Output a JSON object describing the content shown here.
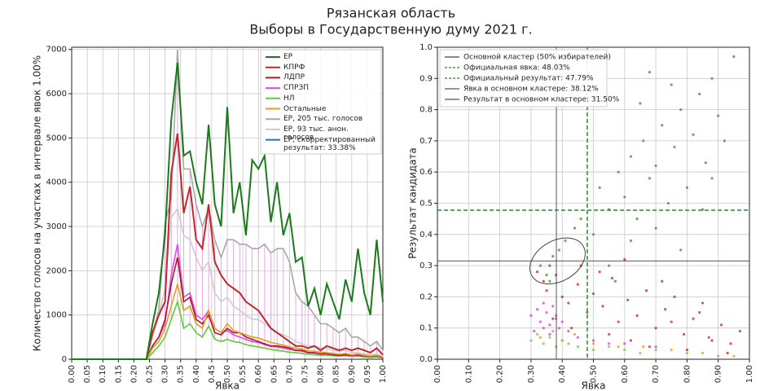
{
  "title": "Рязанская область",
  "subtitle": "Выборы в Государственную думу 2021 г.",
  "chart_data": [
    {
      "type": "line",
      "xlabel": "Явка",
      "ylabel": "Количество голосов на участках в интервале явок 1.00%",
      "xlim": [
        0,
        1
      ],
      "ylim": [
        0,
        7050
      ],
      "xticks": [
        {
          "value": 0,
          "label": "0.00"
        },
        {
          "value": 0.05,
          "label": "0.05"
        },
        {
          "value": 0.1,
          "label": "0.10"
        },
        {
          "value": 0.15,
          "label": "0.15"
        },
        {
          "value": 0.2,
          "label": "0.20"
        },
        {
          "value": 0.25,
          "label": "0.25"
        },
        {
          "value": 0.3,
          "label": "0.30"
        },
        {
          "value": 0.35,
          "label": "0.35"
        },
        {
          "value": 0.4,
          "label": "0.40"
        },
        {
          "value": 0.45,
          "label": "0.45"
        },
        {
          "value": 0.5,
          "label": "0.50"
        },
        {
          "value": 0.55,
          "label": "0.55"
        },
        {
          "value": 0.6,
          "label": "0.60"
        },
        {
          "value": 0.65,
          "label": "0.65"
        },
        {
          "value": 0.7,
          "label": "0.70"
        },
        {
          "value": 0.75,
          "label": "0.75"
        },
        {
          "value": 0.8,
          "label": "0.80"
        },
        {
          "value": 0.85,
          "label": "0.85"
        },
        {
          "value": 0.9,
          "label": "0.90"
        },
        {
          "value": 0.95,
          "label": "0.95"
        },
        {
          "value": 1,
          "label": "1.00"
        }
      ],
      "yticks": [
        0,
        1000,
        2000,
        3000,
        4000,
        5000,
        6000,
        7000
      ],
      "grid": true,
      "legend": "upper right",
      "x": [
        0,
        0.24,
        0.26,
        0.28,
        0.3,
        0.32,
        0.34,
        0.36,
        0.38,
        0.4,
        0.42,
        0.44,
        0.46,
        0.48,
        0.5,
        0.52,
        0.54,
        0.56,
        0.58,
        0.6,
        0.62,
        0.64,
        0.66,
        0.68,
        0.7,
        0.72,
        0.74,
        0.76,
        0.78,
        0.8,
        0.82,
        0.84,
        0.86,
        0.88,
        0.9,
        0.92,
        0.94,
        0.96,
        0.98,
        1.0
      ],
      "series": [
        {
          "name": "ЕР",
          "color": "#1b7a1b",
          "values": [
            0,
            0,
            800,
            1500,
            2800,
            5400,
            6700,
            4600,
            4700,
            4000,
            3500,
            5300,
            3500,
            3000,
            5700,
            3300,
            4000,
            2800,
            4500,
            4300,
            4600,
            3100,
            4000,
            2800,
            3300,
            2200,
            2300,
            1200,
            1600,
            1000,
            1700,
            1300,
            900,
            1800,
            1300,
            2500,
            1500,
            1000,
            2700,
            1300
          ]
        },
        {
          "name": "КПРФ",
          "color": "#c0282d",
          "values": [
            0,
            0,
            600,
            1000,
            1300,
            4200,
            5100,
            3300,
            3900,
            2700,
            2500,
            3500,
            2200,
            1900,
            1700,
            1600,
            1500,
            1300,
            1200,
            1100,
            900,
            700,
            600,
            500,
            400,
            300,
            300,
            250,
            300,
            200,
            300,
            250,
            200,
            250,
            200,
            250,
            200,
            150,
            250,
            100
          ]
        },
        {
          "name": "ЛДПР",
          "color": "#b0152f",
          "values": [
            0,
            0,
            300,
            500,
            900,
            1700,
            2300,
            1300,
            1400,
            900,
            800,
            1000,
            600,
            550,
            700,
            600,
            600,
            500,
            450,
            400,
            350,
            300,
            300,
            280,
            250,
            200,
            200,
            150,
            150,
            120,
            130,
            100,
            90,
            100,
            90,
            100,
            80,
            60,
            80,
            40
          ]
        },
        {
          "name": "СПРЗП",
          "color": "#e04ce0",
          "values": [
            0,
            0,
            300,
            500,
            800,
            1900,
            2600,
            1400,
            1500,
            1000,
            900,
            1100,
            700,
            600,
            650,
            550,
            500,
            450,
            400,
            380,
            330,
            290,
            280,
            250,
            220,
            200,
            180,
            150,
            140,
            120,
            110,
            100,
            90,
            100,
            80,
            90,
            70,
            60,
            70,
            40
          ]
        },
        {
          "name": "НЛ",
          "color": "#5dcc3b",
          "values": [
            0,
            0,
            150,
            300,
            500,
            900,
            1300,
            700,
            800,
            600,
            500,
            750,
            450,
            400,
            450,
            400,
            380,
            330,
            300,
            280,
            250,
            220,
            200,
            180,
            160,
            150,
            130,
            110,
            100,
            90,
            90,
            80,
            70,
            80,
            60,
            70,
            50,
            40,
            50,
            30
          ]
        },
        {
          "name": "Остальные",
          "color": "#e0a020",
          "values": [
            0,
            0,
            250,
            400,
            700,
            1200,
            1700,
            1100,
            1200,
            800,
            700,
            1100,
            700,
            600,
            800,
            650,
            600,
            550,
            500,
            480,
            430,
            380,
            350,
            320,
            280,
            250,
            230,
            190,
            180,
            160,
            150,
            130,
            110,
            130,
            100,
            120,
            90,
            70,
            90,
            50
          ]
        },
        {
          "name": "ЕР, 205 тыс. голосов",
          "color": "#a8a8a8",
          "values": [
            0,
            0,
            600,
            1100,
            3100,
            3600,
            7000,
            4300,
            4300,
            3500,
            3000,
            3400,
            2700,
            2300,
            2700,
            2700,
            2600,
            2600,
            2500,
            2500,
            2600,
            2400,
            2500,
            2500,
            2200,
            1500,
            1300,
            1200,
            1000,
            800,
            800,
            700,
            600,
            700,
            500,
            500,
            400,
            300,
            400,
            200
          ]
        },
        {
          "name": "ЕР, 93 тыс. анон. голосов",
          "color": "#cccccc",
          "values": [
            0,
            0,
            500,
            1000,
            1600,
            3200,
            3400,
            2800,
            2700,
            2300,
            2000,
            2200,
            1500,
            1300,
            1400,
            1200,
            1100,
            1000,
            900,
            900,
            800,
            700,
            600,
            550,
            500,
            400,
            350,
            300,
            300,
            250,
            250,
            200,
            180,
            200,
            150,
            150,
            120,
            100,
            120,
            60
          ]
        },
        {
          "name": "ЕР, скорректированный результат: 33.38%",
          "color": "#1f77b4",
          "values": [
            null,
            null,
            null,
            null,
            null,
            null,
            null,
            null,
            null,
            null,
            null,
            null,
            null,
            null,
            null,
            null,
            null,
            null,
            null,
            null,
            null,
            null,
            null,
            null,
            null,
            null,
            null,
            null,
            null,
            null,
            null,
            null,
            null,
            null,
            null,
            null,
            null,
            null,
            null,
            null
          ]
        }
      ]
    },
    {
      "type": "scatter",
      "xlabel": "Явка",
      "ylabel": "Результат кандидата",
      "xlim": [
        0,
        1
      ],
      "ylim": [
        0,
        1
      ],
      "xticks": [
        {
          "value": 0,
          "label": "0.00"
        },
        {
          "value": 0.1,
          "label": "0.10"
        },
        {
          "value": 0.2,
          "label": "0.20"
        },
        {
          "value": 0.3,
          "label": "0.30"
        },
        {
          "value": 0.4,
          "label": "0.40"
        },
        {
          "value": 0.5,
          "label": "0.50"
        },
        {
          "value": 0.6,
          "label": "0.60"
        },
        {
          "value": 0.7,
          "label": "0.70"
        },
        {
          "value": 0.8,
          "label": "0.80"
        },
        {
          "value": 0.9,
          "label": "0.90"
        },
        {
          "value": 1,
          "label": "1.00"
        }
      ],
      "yticks": [
        {
          "value": 0,
          "label": "0.0"
        },
        0.1,
        0.2,
        0.3,
        0.4,
        0.5,
        0.6,
        0.7,
        0.8,
        0.9,
        {
          "value": 1,
          "label": "1.0"
        }
      ],
      "grid": true,
      "legend": "upper left",
      "series": [
        {
          "color": "#3a9a3a",
          "x": [
            0.33,
            0.35,
            0.37,
            0.36,
            0.39,
            0.41,
            0.44,
            0.46,
            0.5,
            0.52,
            0.55,
            0.58,
            0.6,
            0.62,
            0.64,
            0.66,
            0.68,
            0.7,
            0.72,
            0.74,
            0.76,
            0.78,
            0.8,
            0.82,
            0.84,
            0.86,
            0.88,
            0.9,
            0.92,
            0.95,
            0.55,
            0.62,
            0.7,
            0.78,
            0.85,
            0.65,
            0.75,
            0.57,
            0.68,
            0.88
          ],
          "values": [
            0.3,
            0.27,
            0.33,
            0.25,
            0.35,
            0.38,
            0.42,
            0.45,
            0.4,
            0.55,
            0.48,
            0.6,
            0.52,
            0.65,
            0.45,
            0.7,
            0.58,
            0.62,
            0.75,
            0.5,
            0.68,
            0.8,
            0.55,
            0.72,
            0.85,
            0.63,
            0.9,
            0.78,
            0.7,
            0.97,
            0.3,
            0.38,
            0.42,
            0.35,
            0.48,
            0.82,
            0.88,
            0.25,
            0.92,
            0.58
          ]
        },
        {
          "color": "#c83030",
          "x": [
            0.32,
            0.34,
            0.36,
            0.38,
            0.35,
            0.4,
            0.42,
            0.45,
            0.48,
            0.5,
            0.53,
            0.56,
            0.58,
            0.61,
            0.64,
            0.67,
            0.7,
            0.73,
            0.76,
            0.79,
            0.82,
            0.85,
            0.88,
            0.91,
            0.94,
            0.97,
            0.37,
            0.43,
            0.55,
            0.62,
            0.68,
            0.75,
            0.8,
            0.87,
            0.93,
            0.46,
            0.52,
            0.6,
            0.72,
            0.84
          ],
          "values": [
            0.28,
            0.25,
            0.3,
            0.27,
            0.22,
            0.2,
            0.18,
            0.24,
            0.15,
            0.21,
            0.17,
            0.26,
            0.12,
            0.19,
            0.14,
            0.22,
            0.1,
            0.16,
            0.2,
            0.08,
            0.13,
            0.18,
            0.06,
            0.11,
            0.05,
            0.09,
            0.13,
            0.1,
            0.08,
            0.06,
            0.04,
            0.12,
            0.03,
            0.07,
            0.02,
            0.3,
            0.28,
            0.32,
            0.25,
            0.15
          ]
        },
        {
          "color": "#e040e0",
          "x": [
            0.3,
            0.32,
            0.33,
            0.34,
            0.35,
            0.36,
            0.37,
            0.38,
            0.39,
            0.4,
            0.31,
            0.34,
            0.36,
            0.38,
            0.42,
            0.45,
            0.5,
            0.55,
            0.6,
            0.7
          ],
          "values": [
            0.14,
            0.16,
            0.12,
            0.18,
            0.15,
            0.11,
            0.17,
            0.13,
            0.1,
            0.12,
            0.09,
            0.1,
            0.08,
            0.14,
            0.09,
            0.07,
            0.06,
            0.05,
            0.05,
            0.04
          ]
        },
        {
          "color": "#70d050",
          "x": [
            0.3,
            0.32,
            0.34,
            0.36,
            0.38,
            0.4,
            0.42,
            0.45,
            0.5,
            0.55,
            0.6,
            0.65,
            0.7,
            0.8,
            0.9
          ],
          "values": [
            0.06,
            0.08,
            0.05,
            0.07,
            0.04,
            0.06,
            0.05,
            0.04,
            0.03,
            0.04,
            0.03,
            0.02,
            0.03,
            0.02,
            0.01
          ]
        },
        {
          "color": "#e0a020",
          "x": [
            0.33,
            0.37,
            0.4,
            0.44,
            0.5,
            0.58,
            0.66,
            0.75,
            0.85,
            0.95
          ],
          "values": [
            0.07,
            0.09,
            0.06,
            0.08,
            0.05,
            0.04,
            0.04,
            0.03,
            0.02,
            0.01
          ]
        }
      ],
      "cluster": {
        "label": "Основной кластер (50% избирателей)",
        "cx": 0.385,
        "cy": 0.315,
        "rx": 0.095,
        "ry": 0.065,
        "angle": -30,
        "color": "#444444"
      },
      "reference_lines": [
        {
          "label": "Официальная явка: 48.03%",
          "orient": "vertical",
          "value": 0.4803,
          "color": "#2a8a2a",
          "dashed": true
        },
        {
          "label": "Официальный результат: 47.79%",
          "orient": "horizontal",
          "value": 0.4779,
          "color": "#2a8a2a",
          "dashed": true
        },
        {
          "label": "Явка в основном кластере: 38.12%",
          "orient": "vertical",
          "value": 0.3812,
          "color": "#555555",
          "dashed": false
        },
        {
          "label": "Результат в основном кластере: 31.50%",
          "orient": "horizontal",
          "value": 0.315,
          "color": "#555555",
          "dashed": false
        }
      ]
    }
  ]
}
